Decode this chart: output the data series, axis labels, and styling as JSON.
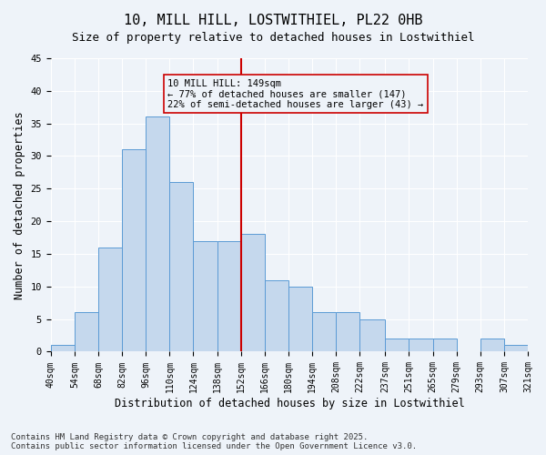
{
  "title": "10, MILL HILL, LOSTWITHIEL, PL22 0HB",
  "subtitle": "Size of property relative to detached houses in Lostwithiel",
  "xlabel": "Distribution of detached houses by size in Lostwithiel",
  "ylabel": "Number of detached properties",
  "bin_edges": [
    40,
    54,
    68,
    82,
    96,
    110,
    124,
    138,
    152,
    166,
    180,
    194,
    208,
    222,
    237,
    251,
    265,
    279,
    293,
    307,
    321
  ],
  "bar_heights": [
    1,
    6,
    16,
    31,
    36,
    26,
    17,
    17,
    18,
    11,
    10,
    6,
    6,
    5,
    2,
    2,
    2,
    0,
    2,
    1
  ],
  "bar_color": "#c5d8ed",
  "bar_edge_color": "#5b9bd5",
  "bg_color": "#eef3f9",
  "grid_color": "#ffffff",
  "vline_x": 152,
  "vline_color": "#cc0000",
  "annotation_text": "10 MILL HILL: 149sqm\n← 77% of detached houses are smaller (147)\n22% of semi-detached houses are larger (43) →",
  "annotation_box_color": "#cc0000",
  "ylim": [
    0,
    45
  ],
  "yticks": [
    0,
    5,
    10,
    15,
    20,
    25,
    30,
    35,
    40,
    45
  ],
  "tick_labels": [
    "40sqm",
    "54sqm",
    "68sqm",
    "82sqm",
    "96sqm",
    "110sqm",
    "124sqm",
    "138sqm",
    "152sqm",
    "166sqm",
    "180sqm",
    "194sqm",
    "208sqm",
    "222sqm",
    "237sqm",
    "251sqm",
    "265sqm",
    "279sqm",
    "293sqm",
    "307sqm",
    "321sqm"
  ],
  "footer": "Contains HM Land Registry data © Crown copyright and database right 2025.\nContains public sector information licensed under the Open Government Licence v3.0.",
  "title_fontsize": 11,
  "subtitle_fontsize": 9,
  "xlabel_fontsize": 8.5,
  "ylabel_fontsize": 8.5,
  "tick_fontsize": 7,
  "annotation_fontsize": 7.5,
  "footer_fontsize": 6.5
}
